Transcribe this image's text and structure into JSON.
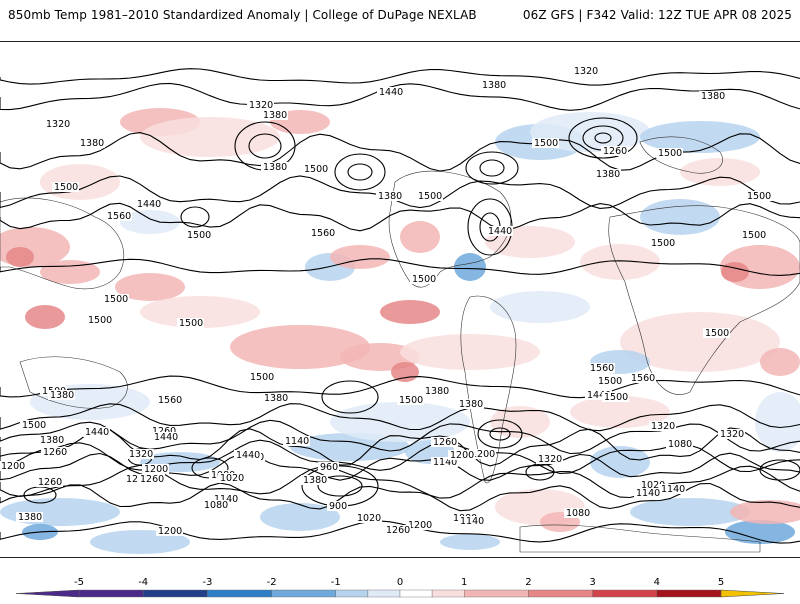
{
  "header": {
    "left_title": "850mb Temp 1981–2010 Standardized Anomaly | College of DuPage NEXLAB",
    "right_title": "06Z GFS | F342 Valid: 12Z TUE APR 08 2025"
  },
  "map": {
    "contour_labels": [
      "1320",
      "1440",
      "1380",
      "1380",
      "1320",
      "1380",
      "1260",
      "1380",
      "1320",
      "1380",
      "1500",
      "1380",
      "1500",
      "1500",
      "1440",
      "1500",
      "1560",
      "1380",
      "1500",
      "1560",
      "1500",
      "1440",
      "1500",
      "1500",
      "1500",
      "1500",
      "1500",
      "1500",
      "1500",
      "1500",
      "1500",
      "1560",
      "1560",
      "1500",
      "1380",
      "1500",
      "1380",
      "1560",
      "1500",
      "1440",
      "1380",
      "1500",
      "1500",
      "1380",
      "1440",
      "1260",
      "1200",
      "1320",
      "1260",
      "1140",
      "1200",
      "1080",
      "1440",
      "1320",
      "1380",
      "1260",
      "1200",
      "1140",
      "1080",
      "1020",
      "960",
      "900",
      "1140",
      "1020",
      "1320",
      "1140",
      "1260",
      "1200",
      "1140",
      "1080",
      "1200",
      "1260",
      "1080",
      "1380",
      "1260",
      "1200",
      "1020",
      "1140",
      "1080",
      "1260",
      "1380",
      "1440",
      "1200",
      "1320"
    ]
  },
  "colorbar": {
    "ticks": [
      "-5",
      "-4",
      "-3",
      "-2",
      "-1",
      "0",
      "1",
      "2",
      "3",
      "4",
      "5"
    ],
    "colors": {
      "neg5": "#4b2a8a",
      "neg4": "#233f8a",
      "neg3": "#2f7fc8",
      "neg2": "#6fa9dc",
      "neg1": "#b6d3ee",
      "neg05": "#dfeaf7",
      "zero": "#ffffff",
      "pos05": "#f9dede",
      "pos1": "#f2b5b5",
      "pos2": "#e58787",
      "pos3": "#d1454a",
      "pos4": "#a3141d",
      "pos5": "#6d0008",
      "extreme": "#f2c200"
    }
  }
}
